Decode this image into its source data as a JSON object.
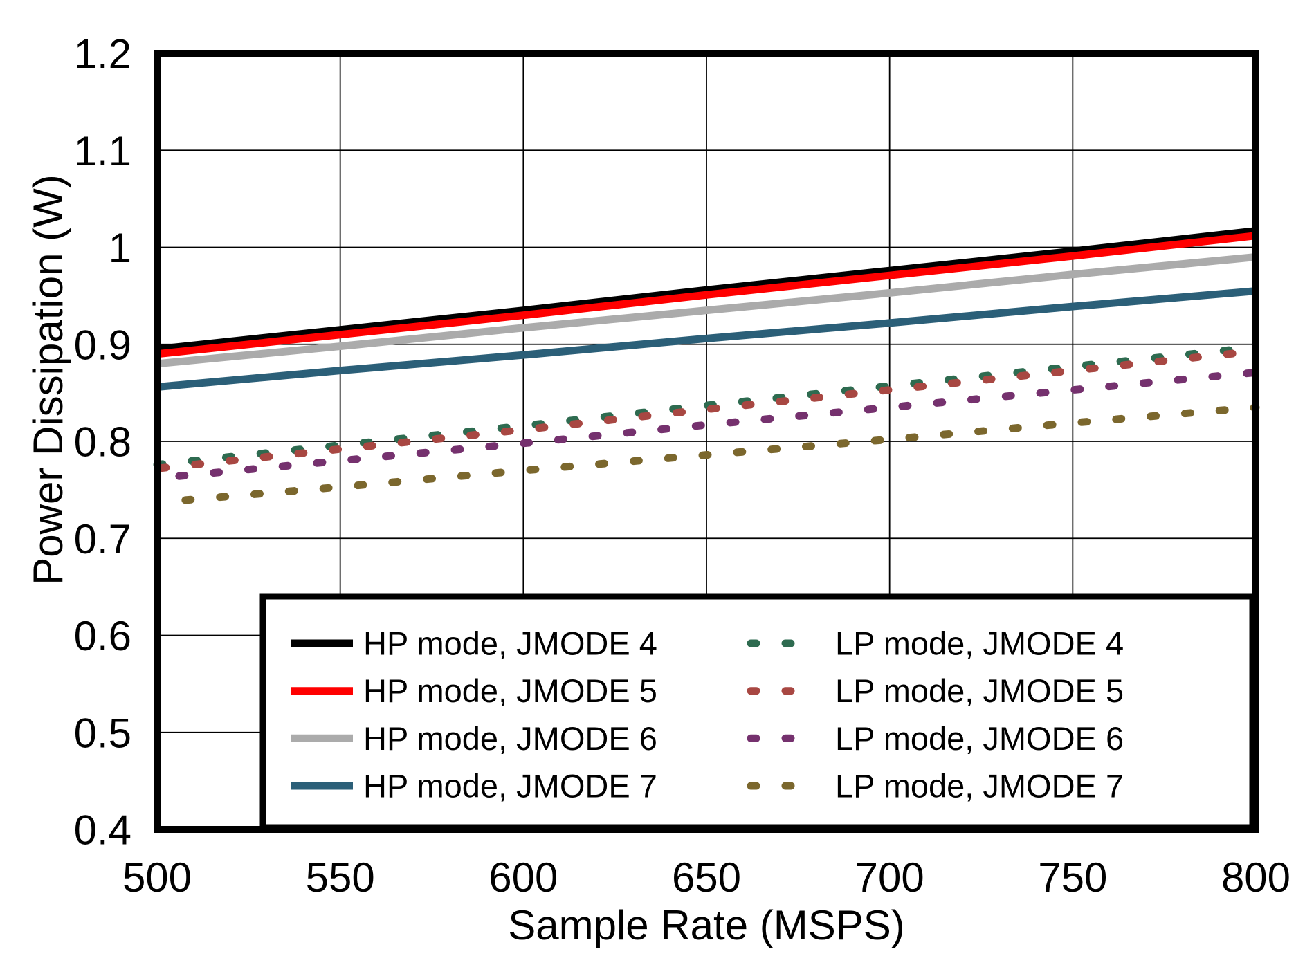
{
  "figure": {
    "background": "#ffffff",
    "axis_color": "#000000",
    "grid_color": "#000000"
  },
  "chart_data": {
    "type": "line",
    "title": "",
    "xlabel": "Sample Rate (MSPS)",
    "ylabel": "Power Dissipation (W)",
    "xlim": [
      500,
      800
    ],
    "ylim": [
      0.4,
      1.2
    ],
    "xticks": [
      500,
      550,
      600,
      650,
      700,
      750,
      800
    ],
    "xtick_labels": [
      "500",
      "550",
      "600",
      "650",
      "700",
      "750",
      "800"
    ],
    "yticks": [
      0.4,
      0.5,
      0.6,
      0.7,
      0.8,
      0.9,
      1.0,
      1.1,
      1.2
    ],
    "ytick_labels": [
      "0.4",
      "0.5",
      "0.6",
      "0.7",
      "0.8",
      "0.9",
      "1",
      "1.1",
      "1.2"
    ],
    "grid": true,
    "legend_position": "inside-bottom-right",
    "legend_columns": 2,
    "x": [
      500,
      550,
      600,
      650,
      700,
      750,
      800
    ],
    "series": [
      {
        "name": "HP mode, JMODE 4",
        "color": "#000000",
        "style": "solid",
        "values": [
          0.895,
          0.915,
          0.935,
          0.956,
          0.976,
          0.996,
          1.017
        ]
      },
      {
        "name": "HP mode, JMODE 5",
        "color": "#ff0000",
        "style": "solid",
        "values": [
          0.89,
          0.91,
          0.93,
          0.951,
          0.971,
          0.991,
          1.012
        ]
      },
      {
        "name": "HP mode, JMODE 6",
        "color": "#ababab",
        "style": "solid",
        "values": [
          0.88,
          0.898,
          0.917,
          0.935,
          0.953,
          0.972,
          0.99
        ]
      },
      {
        "name": "HP mode, JMODE 7",
        "color": "#2b5f78",
        "style": "solid",
        "values": [
          0.856,
          0.873,
          0.889,
          0.906,
          0.922,
          0.939,
          0.955
        ]
      },
      {
        "name": "LP mode, JMODE 4",
        "color": "#2e6b50",
        "style": "dashed",
        "values": [
          0.776,
          0.796,
          0.816,
          0.837,
          0.857,
          0.877,
          0.897
        ]
      },
      {
        "name": "LP mode, JMODE 5",
        "color": "#a84742",
        "style": "dashed",
        "values": [
          0.772,
          0.792,
          0.812,
          0.833,
          0.853,
          0.873,
          0.893
        ]
      },
      {
        "name": "LP mode, JMODE 6",
        "color": "#75316e",
        "style": "dashed",
        "values": [
          0.762,
          0.78,
          0.798,
          0.817,
          0.835,
          0.853,
          0.871
        ]
      },
      {
        "name": "LP mode, JMODE 7",
        "color": "#7b672d",
        "style": "dashed",
        "values": [
          0.737,
          0.753,
          0.77,
          0.786,
          0.802,
          0.819,
          0.835
        ]
      }
    ]
  }
}
